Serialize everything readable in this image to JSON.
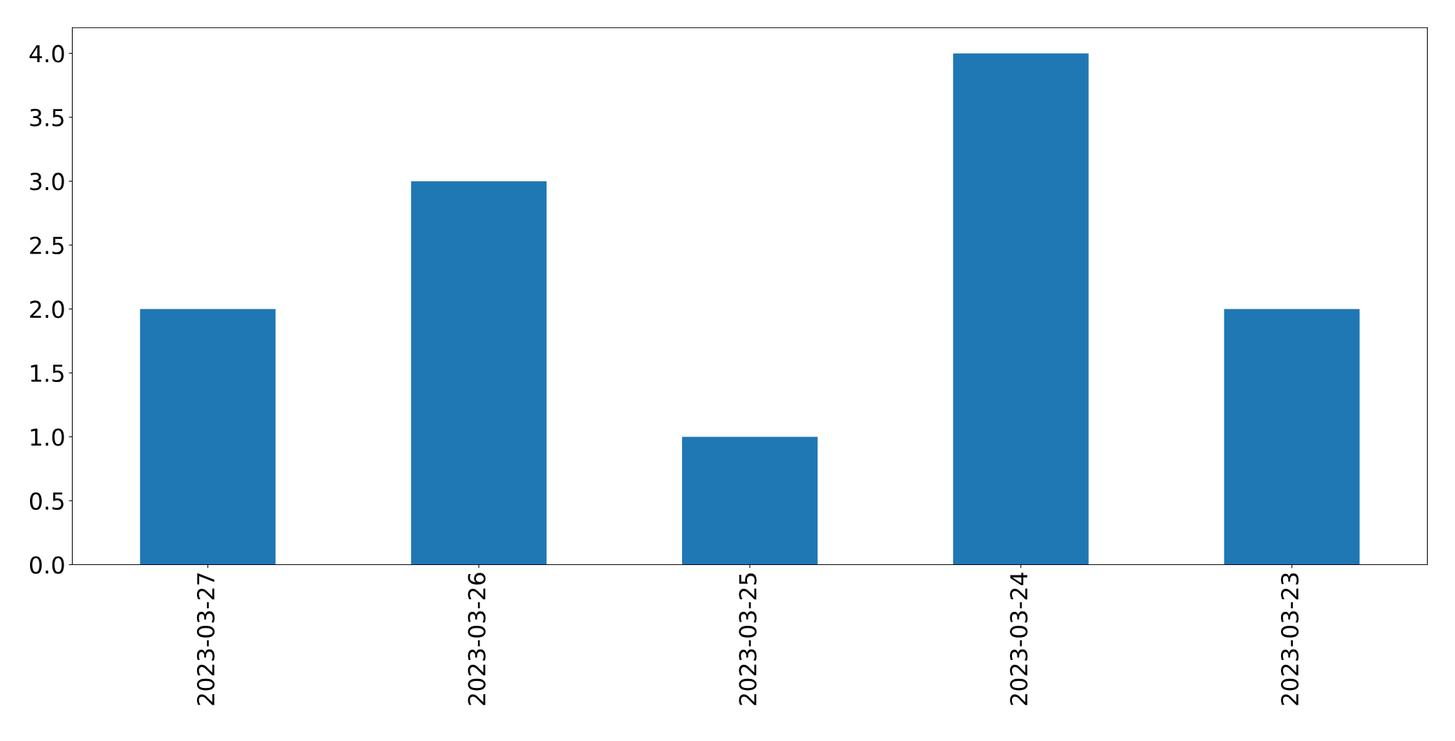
{
  "chart_data": {
    "type": "bar",
    "categories": [
      "2023-03-27",
      "2023-03-26",
      "2023-03-25",
      "2023-03-24",
      "2023-03-23"
    ],
    "values": [
      2,
      3,
      1,
      4,
      2
    ],
    "color": "#1f77b4",
    "ylim": [
      0,
      4.2
    ],
    "yticks": [
      {
        "value": 0,
        "label": "0.0"
      },
      {
        "value": 0.5,
        "label": "0.5"
      },
      {
        "value": 1,
        "label": "1.0"
      },
      {
        "value": 1.5,
        "label": "1.5"
      },
      {
        "value": 2,
        "label": "2.0"
      },
      {
        "value": 2.5,
        "label": "2.5"
      },
      {
        "value": 3,
        "label": "3.0"
      },
      {
        "value": 3.5,
        "label": "3.5"
      },
      {
        "value": 4,
        "label": "4.0"
      }
    ],
    "grid": false,
    "legend": false
  }
}
